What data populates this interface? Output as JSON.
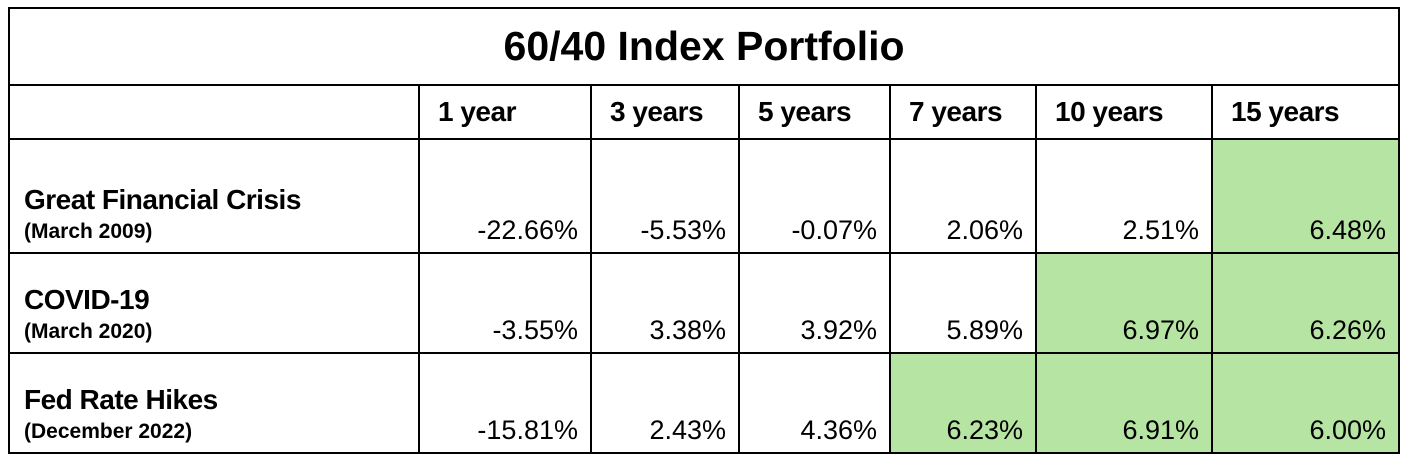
{
  "chart_data": {
    "type": "table",
    "title": "60/40 Index Portfolio",
    "columns": [
      "1 year",
      "3 years",
      "5 years",
      "7 years",
      "10 years",
      "15 years"
    ],
    "rows": [
      {
        "label": "Great Financial Crisis",
        "sublabel": "(March 2009)",
        "values": [
          "-22.66%",
          "-5.53%",
          "-0.07%",
          "2.06%",
          "2.51%",
          "6.48%"
        ],
        "highlighted": [
          false,
          false,
          false,
          false,
          false,
          true
        ]
      },
      {
        "label": "COVID-19",
        "sublabel": "(March 2020)",
        "values": [
          "-3.55%",
          "3.38%",
          "3.92%",
          "5.89%",
          "6.97%",
          "6.26%"
        ],
        "highlighted": [
          false,
          false,
          false,
          false,
          true,
          true
        ]
      },
      {
        "label": "Fed Rate Hikes",
        "sublabel": "(December 2022)",
        "values": [
          "-15.81%",
          "2.43%",
          "4.36%",
          "6.23%",
          "6.91%",
          "6.00%"
        ],
        "highlighted": [
          false,
          false,
          false,
          true,
          true,
          true
        ]
      }
    ],
    "highlight_color": "#b6e4a2"
  }
}
